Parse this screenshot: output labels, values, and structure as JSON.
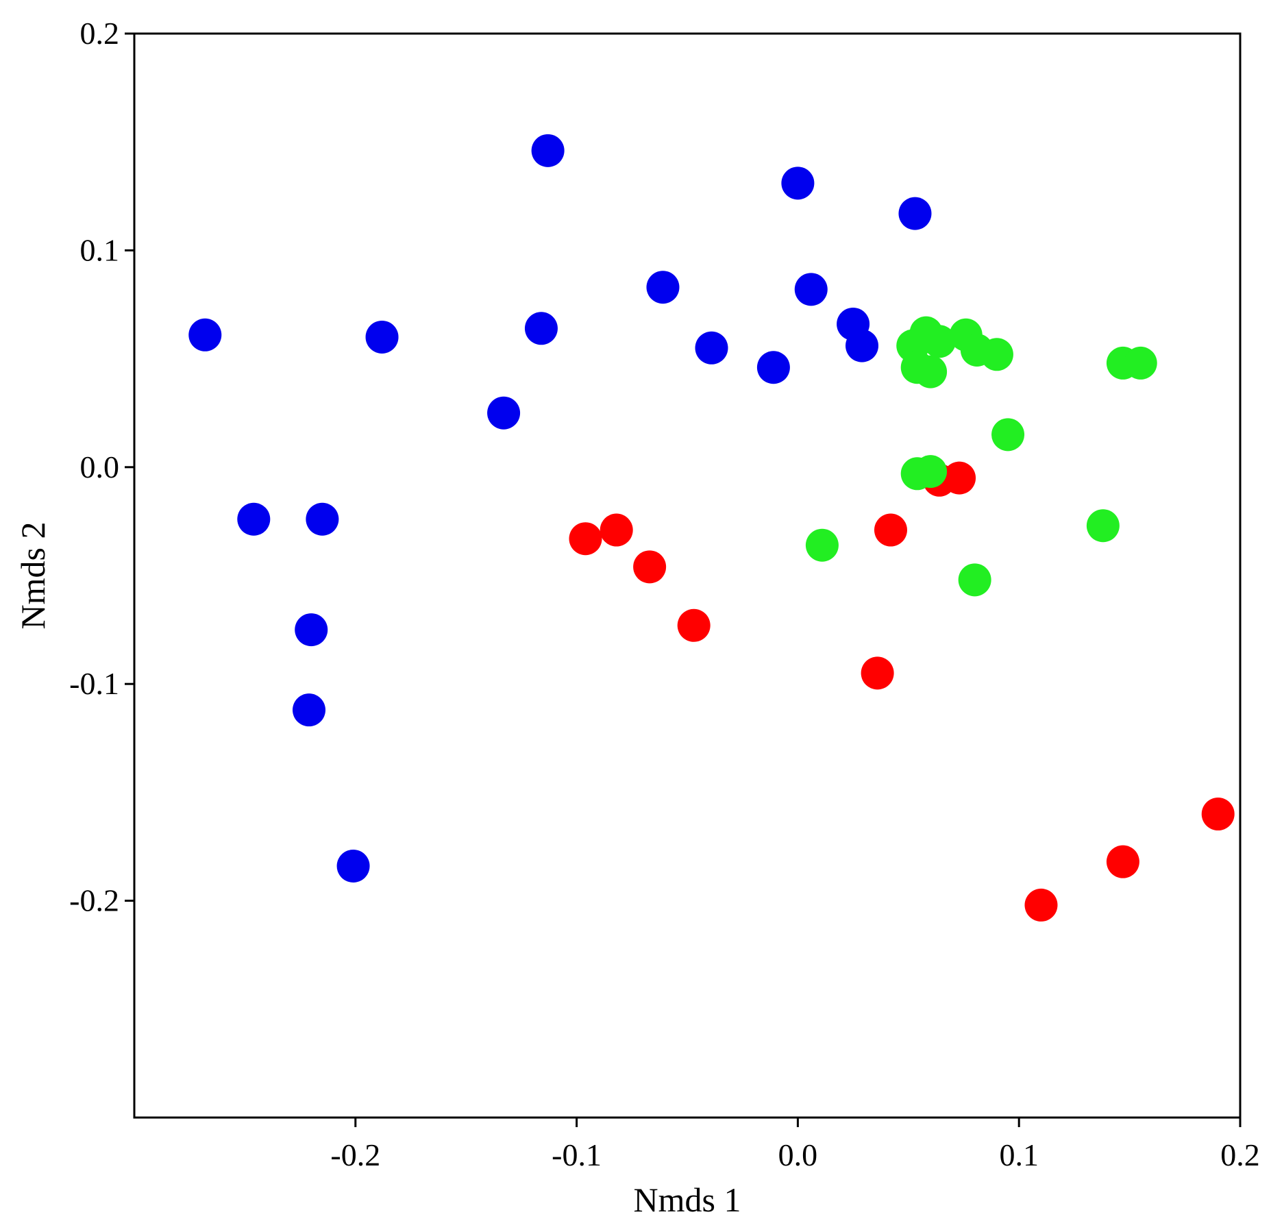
{
  "chart_data": {
    "type": "scatter",
    "title": "",
    "xlabel": "Nmds 1",
    "ylabel": "Nmds 2",
    "xlim": [
      -0.3,
      0.2
    ],
    "ylim": [
      -0.3,
      0.2
    ],
    "xticks": [
      "-0.2",
      "-0.1",
      "0.0",
      "0.1",
      "0.2"
    ],
    "yticks": [
      "0.2",
      "0.1",
      "0.0",
      "-0.1",
      "-0.2"
    ],
    "grid": false,
    "legend": "none",
    "series": [
      {
        "color": "#0000ee",
        "points": [
          [
            -0.268,
            0.061
          ],
          [
            -0.188,
            0.06
          ],
          [
            -0.113,
            0.146
          ],
          [
            -0.116,
            0.064
          ],
          [
            -0.133,
            0.025
          ],
          [
            -0.061,
            0.083
          ],
          [
            -0.039,
            0.055
          ],
          [
            -0.011,
            0.046
          ],
          [
            0.0,
            0.131
          ],
          [
            0.006,
            0.082
          ],
          [
            0.025,
            0.066
          ],
          [
            0.029,
            0.056
          ],
          [
            0.053,
            0.117
          ],
          [
            -0.246,
            -0.024
          ],
          [
            -0.215,
            -0.024
          ],
          [
            -0.22,
            -0.075
          ],
          [
            -0.221,
            -0.112
          ],
          [
            -0.201,
            -0.184
          ]
        ]
      },
      {
        "color": "#ff0000",
        "points": [
          [
            -0.096,
            -0.033
          ],
          [
            -0.082,
            -0.029
          ],
          [
            -0.067,
            -0.046
          ],
          [
            -0.047,
            -0.073
          ],
          [
            0.042,
            -0.029
          ],
          [
            0.036,
            -0.095
          ],
          [
            0.064,
            -0.006
          ],
          [
            0.073,
            -0.005
          ],
          [
            0.11,
            -0.202
          ],
          [
            0.147,
            -0.182
          ],
          [
            0.19,
            -0.16
          ]
        ]
      },
      {
        "color": "#22ee22",
        "points": [
          [
            0.052,
            0.056
          ],
          [
            0.058,
            0.062
          ],
          [
            0.064,
            0.058
          ],
          [
            0.054,
            0.046
          ],
          [
            0.06,
            0.044
          ],
          [
            0.076,
            0.061
          ],
          [
            0.081,
            0.054
          ],
          [
            0.09,
            0.052
          ],
          [
            0.147,
            0.048
          ],
          [
            0.155,
            0.048
          ],
          [
            0.095,
            0.015
          ],
          [
            0.054,
            -0.003
          ],
          [
            0.06,
            -0.002
          ],
          [
            0.011,
            -0.036
          ],
          [
            0.138,
            -0.027
          ],
          [
            0.08,
            -0.052
          ]
        ]
      }
    ]
  }
}
